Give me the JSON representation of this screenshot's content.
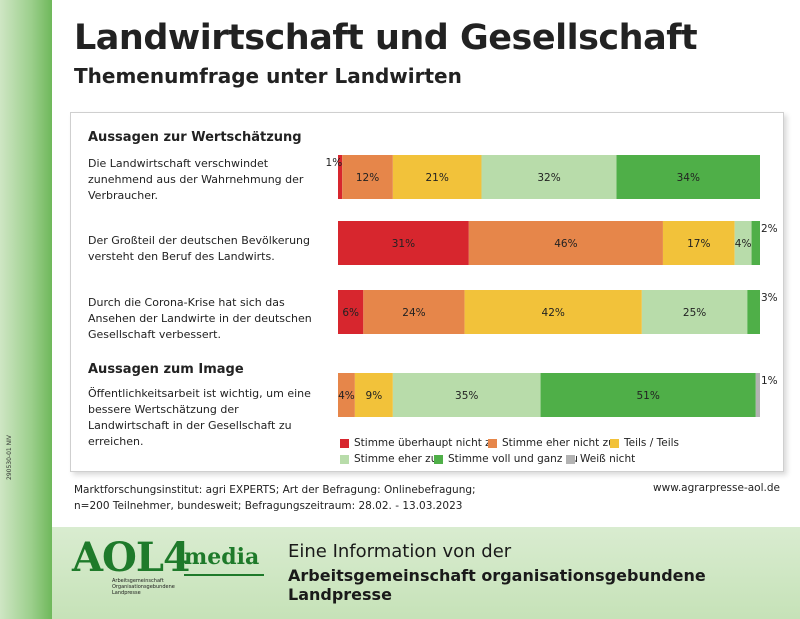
{
  "side_code": "290530-01 NIV",
  "header": {
    "title": "Landwirtschaft und Gesellschaft",
    "subtitle": "Themenumfrage unter Landwirten"
  },
  "sections": [
    {
      "heading": "Aussagen zur Wertschätzung"
    },
    {
      "heading": "Aussagen zum Image"
    }
  ],
  "statements": [
    "Die Landwirtschaft verschwindet zunehmend aus der Wahrnehmung der Verbraucher.",
    "Der Großteil der deutschen Bevölkerung versteht den Beruf des Landwirts.",
    "Durch die Corona-Krise hat sich das Ansehen der Landwirte in der deutschen Gesellschaft verbessert.",
    "Öffentlichkeitsarbeit ist wichtig, um eine bessere Wertschätzung der Landwirtschaft in der Gesellschaft zu erreichen."
  ],
  "chart_data": {
    "type": "bar",
    "orientation": "horizontal",
    "stacked": true,
    "unit": "%",
    "xlim": [
      0,
      100
    ],
    "categories": [
      "Die Landwirtschaft verschwindet zunehmend aus der Wahrnehmung der Verbraucher.",
      "Der Großteil der deutschen Bevölkerung versteht den Beruf des Landwirts.",
      "Durch die Corona-Krise hat sich das Ansehen der Landwirte in der deutschen Gesellschaft verbessert.",
      "Öffentlichkeitsarbeit ist wichtig, um eine bessere Wertschätzung der Landwirtschaft in der Gesellschaft zu erreichen."
    ],
    "series": [
      {
        "name": "Stimme überhaupt nicht zu",
        "color": "#d7262e",
        "values": [
          1,
          31,
          6,
          0
        ]
      },
      {
        "name": "Stimme eher nicht zu",
        "color": "#e6864a",
        "values": [
          12,
          46,
          24,
          4
        ]
      },
      {
        "name": "Teils / Teils",
        "color": "#f2c23a",
        "values": [
          21,
          17,
          42,
          9
        ]
      },
      {
        "name": "Stimme eher zu",
        "color": "#b8dcaa",
        "values": [
          32,
          4,
          25,
          35
        ]
      },
      {
        "name": "Stimme voll und ganz zu",
        "color": "#4faf48",
        "values": [
          34,
          2,
          3,
          51
        ]
      },
      {
        "name": "Weiß nicht",
        "color": "#b3b3b3",
        "values": [
          0,
          0,
          0,
          1
        ]
      }
    ],
    "data_labels": [
      [
        "1%",
        "12%",
        "21%",
        "32%",
        "34%",
        ""
      ],
      [
        "31%",
        "46%",
        "17%",
        "4%",
        "2%",
        ""
      ],
      [
        "6%",
        "24%",
        "42%",
        "25%",
        "3%",
        ""
      ],
      [
        "",
        "4%",
        "9%",
        "35%",
        "51%",
        "1%"
      ]
    ],
    "legend_position": "bottom"
  },
  "footer": {
    "source_line1": "Marktforschungsinstitut: agri EXPERTS; Art der Befragung: Onlinebefragung;",
    "source_line2": "n=200 Teilnehmer, bundesweit; Befragungszeitraum: 28.02. - 13.03.2023",
    "website": "www.agrarpresse-aol.de",
    "info_line1": "Eine Information von der",
    "info_line2": "Arbeitsgemeinschaft organisationsgebundene Landpresse"
  },
  "logo": {
    "main": "AOL4",
    "media": "media",
    "sub_lines": [
      "Arbeitsgemeinschaft",
      "Organisationsgebundene",
      "Landpresse"
    ]
  }
}
